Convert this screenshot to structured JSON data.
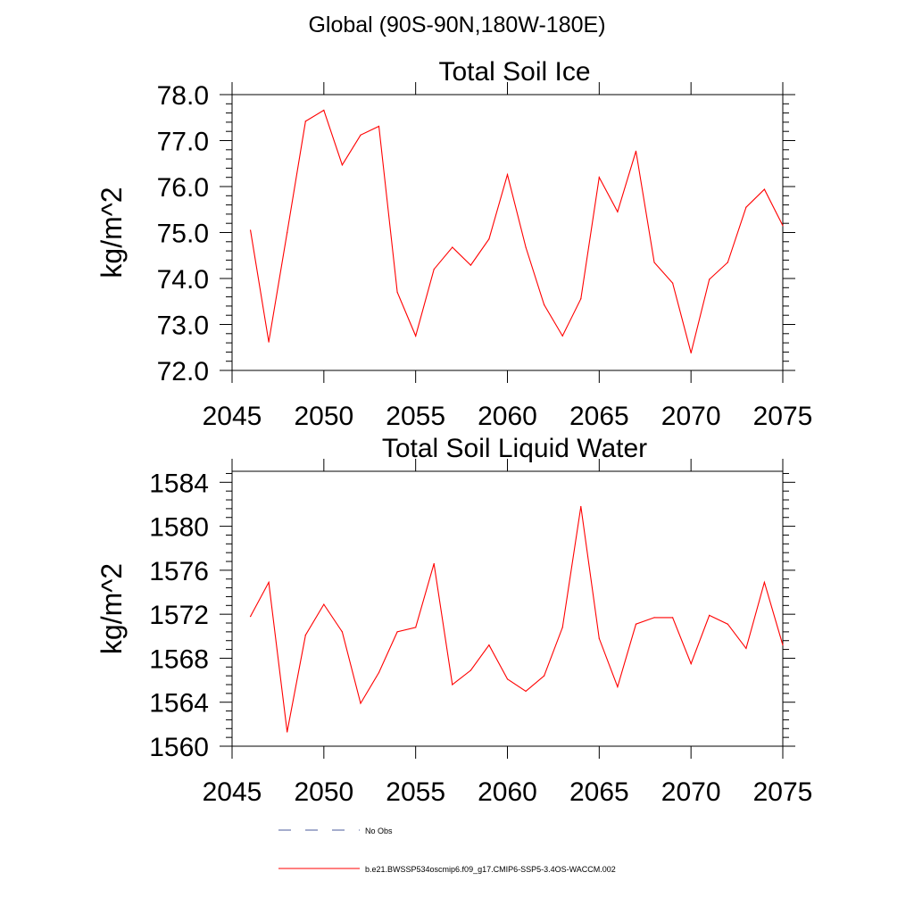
{
  "figure_title": "Global (90S-90N,180W-180E)",
  "legend": {
    "items": [
      {
        "label": "No Obs",
        "color": "#4b5b9b",
        "style": "dashed"
      },
      {
        "label": "b.e21.BWSSP534oscmip6.f09_g17.CMIP6-SSP5-3.4OS-WACCM.002",
        "color": "#ff0000",
        "style": "solid"
      }
    ]
  },
  "chart_data": [
    {
      "type": "line",
      "title": "Total Soil Ice",
      "xlabel": "",
      "ylabel": "kg/m^2",
      "xlim": [
        2045,
        2075
      ],
      "ylim": [
        72.0,
        78.0
      ],
      "xticks": [
        "2045",
        "2050",
        "2055",
        "2060",
        "2065",
        "2070",
        "2075"
      ],
      "yticks": [
        "72.0",
        "73.0",
        "74.0",
        "75.0",
        "76.0",
        "77.0",
        "78.0"
      ],
      "grid": false,
      "series": [
        {
          "color": "#ff0000",
          "x": [
            2046,
            2047,
            2048,
            2049,
            2050,
            2051,
            2052,
            2053,
            2054,
            2055,
            2056,
            2057,
            2058,
            2059,
            2060,
            2061,
            2062,
            2063,
            2064,
            2065,
            2066,
            2067,
            2068,
            2069,
            2070,
            2071,
            2072,
            2073,
            2074,
            2075
          ],
          "y": [
            75.05,
            72.62,
            75.0,
            77.42,
            77.66,
            76.47,
            77.12,
            77.31,
            73.7,
            72.75,
            74.2,
            74.68,
            74.29,
            74.86,
            76.26,
            74.68,
            73.43,
            72.75,
            73.56,
            76.2,
            75.45,
            76.77,
            74.35,
            73.9,
            72.38,
            73.98,
            74.35,
            75.55,
            75.94,
            75.15
          ]
        }
      ]
    },
    {
      "type": "line",
      "title": "Total Soil Liquid Water",
      "xlabel": "",
      "ylabel": "kg/m^2",
      "xlim": [
        2045,
        2075
      ],
      "ylim": [
        1560,
        1585
      ],
      "xticks": [
        "2045",
        "2050",
        "2055",
        "2060",
        "2065",
        "2070",
        "2075"
      ],
      "yticks": [
        "1560",
        "1564",
        "1568",
        "1572",
        "1576",
        "1580",
        "1584"
      ],
      "grid": false,
      "series": [
        {
          "color": "#ff0000",
          "x": [
            2046,
            2047,
            2048,
            2049,
            2050,
            2051,
            2052,
            2053,
            2054,
            2055,
            2056,
            2057,
            2058,
            2059,
            2060,
            2061,
            2062,
            2063,
            2064,
            2065,
            2066,
            2067,
            2068,
            2069,
            2070,
            2071,
            2072,
            2073,
            2074,
            2075
          ],
          "y": [
            1571.8,
            1574.9,
            1561.3,
            1570.1,
            1572.9,
            1570.4,
            1563.9,
            1566.7,
            1570.4,
            1570.8,
            1576.6,
            1565.6,
            1566.9,
            1569.2,
            1566.1,
            1565.0,
            1566.4,
            1570.8,
            1581.8,
            1569.8,
            1565.4,
            1571.1,
            1571.7,
            1571.7,
            1567.5,
            1571.9,
            1571.1,
            1568.9,
            1574.9,
            1569.2
          ]
        }
      ]
    }
  ]
}
